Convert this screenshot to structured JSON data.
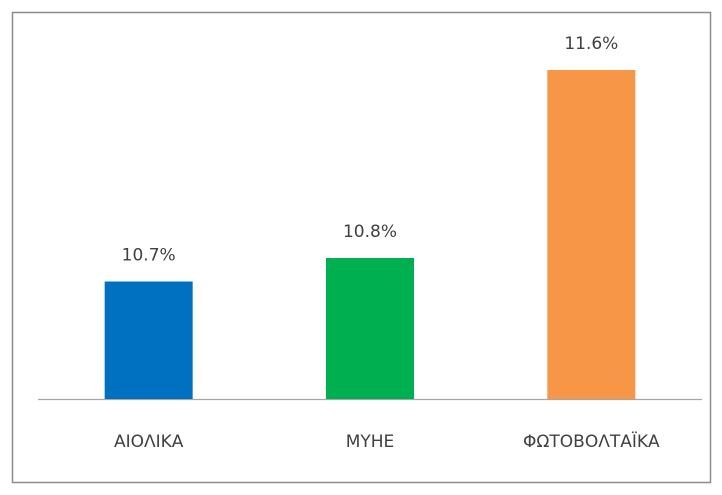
{
  "chart_data": {
    "type": "bar",
    "categories": [
      "ΑΙΟΛΙΚΑ",
      "ΜΥΗΕ",
      "ΦΩΤΟΒΟΛΤΑΪΚΑ"
    ],
    "values": [
      10.7,
      10.8,
      11.6
    ],
    "value_labels": [
      "10.7%",
      "10.8%",
      "11.6%"
    ],
    "colors": [
      "#0070c0",
      "#00b050",
      "#f79646"
    ],
    "ylim": [
      10.2,
      11.8
    ]
  }
}
